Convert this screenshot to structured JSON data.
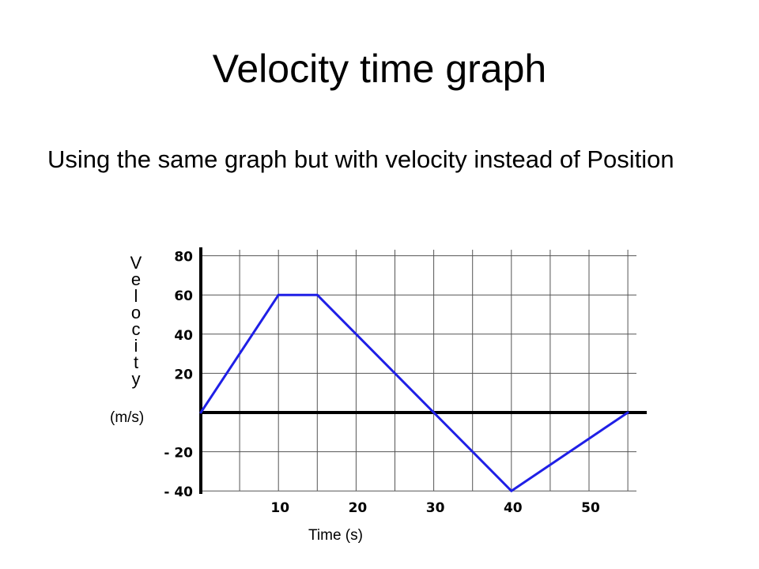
{
  "slide": {
    "title": "Velocity time graph",
    "body": "Using the same graph but with velocity instead of Position"
  },
  "chart_data": {
    "type": "line",
    "ylabel": "Velocity",
    "yunit": "(m/s)",
    "xlabel": "Time (s)",
    "xlim": [
      0,
      55
    ],
    "ylim": [
      -40,
      80
    ],
    "x_ticks": [
      10,
      20,
      30,
      40,
      50
    ],
    "x_tick_labels": [
      "10",
      "20",
      "30",
      "40",
      "50"
    ],
    "y_ticks": [
      80,
      60,
      40,
      20,
      -20,
      -40
    ],
    "y_tick_labels": [
      "80",
      "60",
      "40",
      "20",
      "- 20",
      "- 40"
    ],
    "grid": true,
    "series": [
      {
        "color": "#1f1fe6",
        "points": [
          {
            "x": 0,
            "y": 0
          },
          {
            "x": 10,
            "y": 60
          },
          {
            "x": 15,
            "y": 60
          },
          {
            "x": 30,
            "y": 0
          },
          {
            "x": 40,
            "y": -40
          },
          {
            "x": 55,
            "y": 0
          }
        ]
      }
    ]
  }
}
